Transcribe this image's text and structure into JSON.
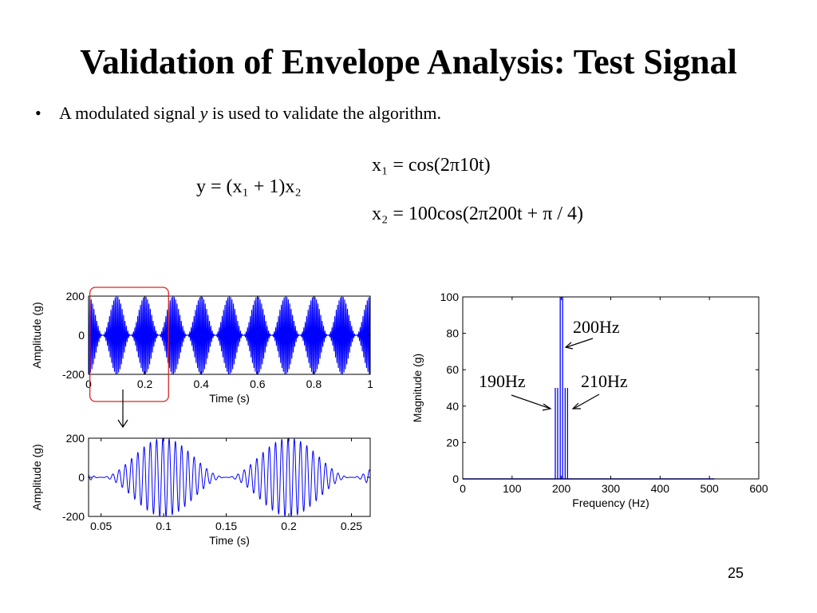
{
  "slide": {
    "title": "Validation of Envelope Analysis: Test Signal",
    "bullet_symbol": "•",
    "bullet_pre": "A modulated signal ",
    "bullet_var": "y",
    "bullet_post": " is used to validate the algorithm.",
    "page_number": "25"
  },
  "equations": {
    "y_def": "y = (x₁ + 1)x₂",
    "x1_def": "x₁ = cos(2π10t)",
    "x2_def": "x₂ = 100cos(2π200t + π / 4)"
  },
  "annotations": {
    "peak_center": "200Hz",
    "peak_left": "190Hz",
    "peak_right": "210Hz"
  },
  "colors": {
    "signal": "#0000ff",
    "highlight_box": "#d62728",
    "axis": "#000000"
  },
  "chart_data": [
    {
      "type": "line",
      "title": "",
      "xlabel": "Time (s)",
      "ylabel": "Amplitude (g)",
      "xlim": [
        0,
        1
      ],
      "ylim": [
        -200,
        200
      ],
      "xticks": [
        0,
        0.2,
        0.4,
        0.6,
        0.8,
        1
      ],
      "yticks": [
        -200,
        0,
        200
      ],
      "xtick_labels": [
        "0",
        "0.2",
        "0.4",
        "0.6",
        "0.8",
        "1"
      ],
      "ytick_labels": [
        "-200",
        "0",
        "200"
      ],
      "series": [
        {
          "signal": "y = (cos(2π10t) + 1)·100cos(2π200t + π/4)",
          "envelope_peak": 200,
          "envelope_frequency_hz": 10,
          "carrier_frequency_hz": 200
        }
      ],
      "highlight_region": {
        "x": [
          0.05,
          0.25
        ]
      },
      "grid": false
    },
    {
      "type": "line",
      "title": "",
      "xlabel": "Time (s)",
      "ylabel": "Amplitude (g)",
      "xlim": [
        0.04,
        0.265
      ],
      "ylim": [
        -200,
        200
      ],
      "xticks": [
        0.05,
        0.1,
        0.15,
        0.2,
        0.25
      ],
      "yticks": [
        -200,
        0,
        200
      ],
      "xtick_labels": [
        "0.05",
        "0.1",
        "0.15",
        "0.2",
        "0.25"
      ],
      "ytick_labels": [
        "-200",
        "0",
        "200"
      ],
      "series": [
        {
          "signal": "y = (cos(2π10t) + 1)·100cos(2π200t + π/4)",
          "envelope_peak": 200,
          "envelope_frequency_hz": 10,
          "carrier_frequency_hz": 200
        }
      ],
      "grid": false
    },
    {
      "type": "line",
      "title": "",
      "xlabel": "Frequency (Hz)",
      "ylabel": "Magnitude (g)",
      "xlim": [
        0,
        600
      ],
      "ylim": [
        0,
        100
      ],
      "xticks": [
        0,
        100,
        200,
        300,
        400,
        500,
        600
      ],
      "yticks": [
        0,
        20,
        40,
        60,
        80,
        100
      ],
      "xtick_labels": [
        "0",
        "100",
        "200",
        "300",
        "400",
        "500",
        "600"
      ],
      "ytick_labels": [
        "0",
        "20",
        "40",
        "60",
        "80",
        "100"
      ],
      "x": [
        190,
        200,
        210
      ],
      "values": [
        50,
        100,
        50
      ],
      "series_xmax": 510,
      "grid": false
    }
  ]
}
